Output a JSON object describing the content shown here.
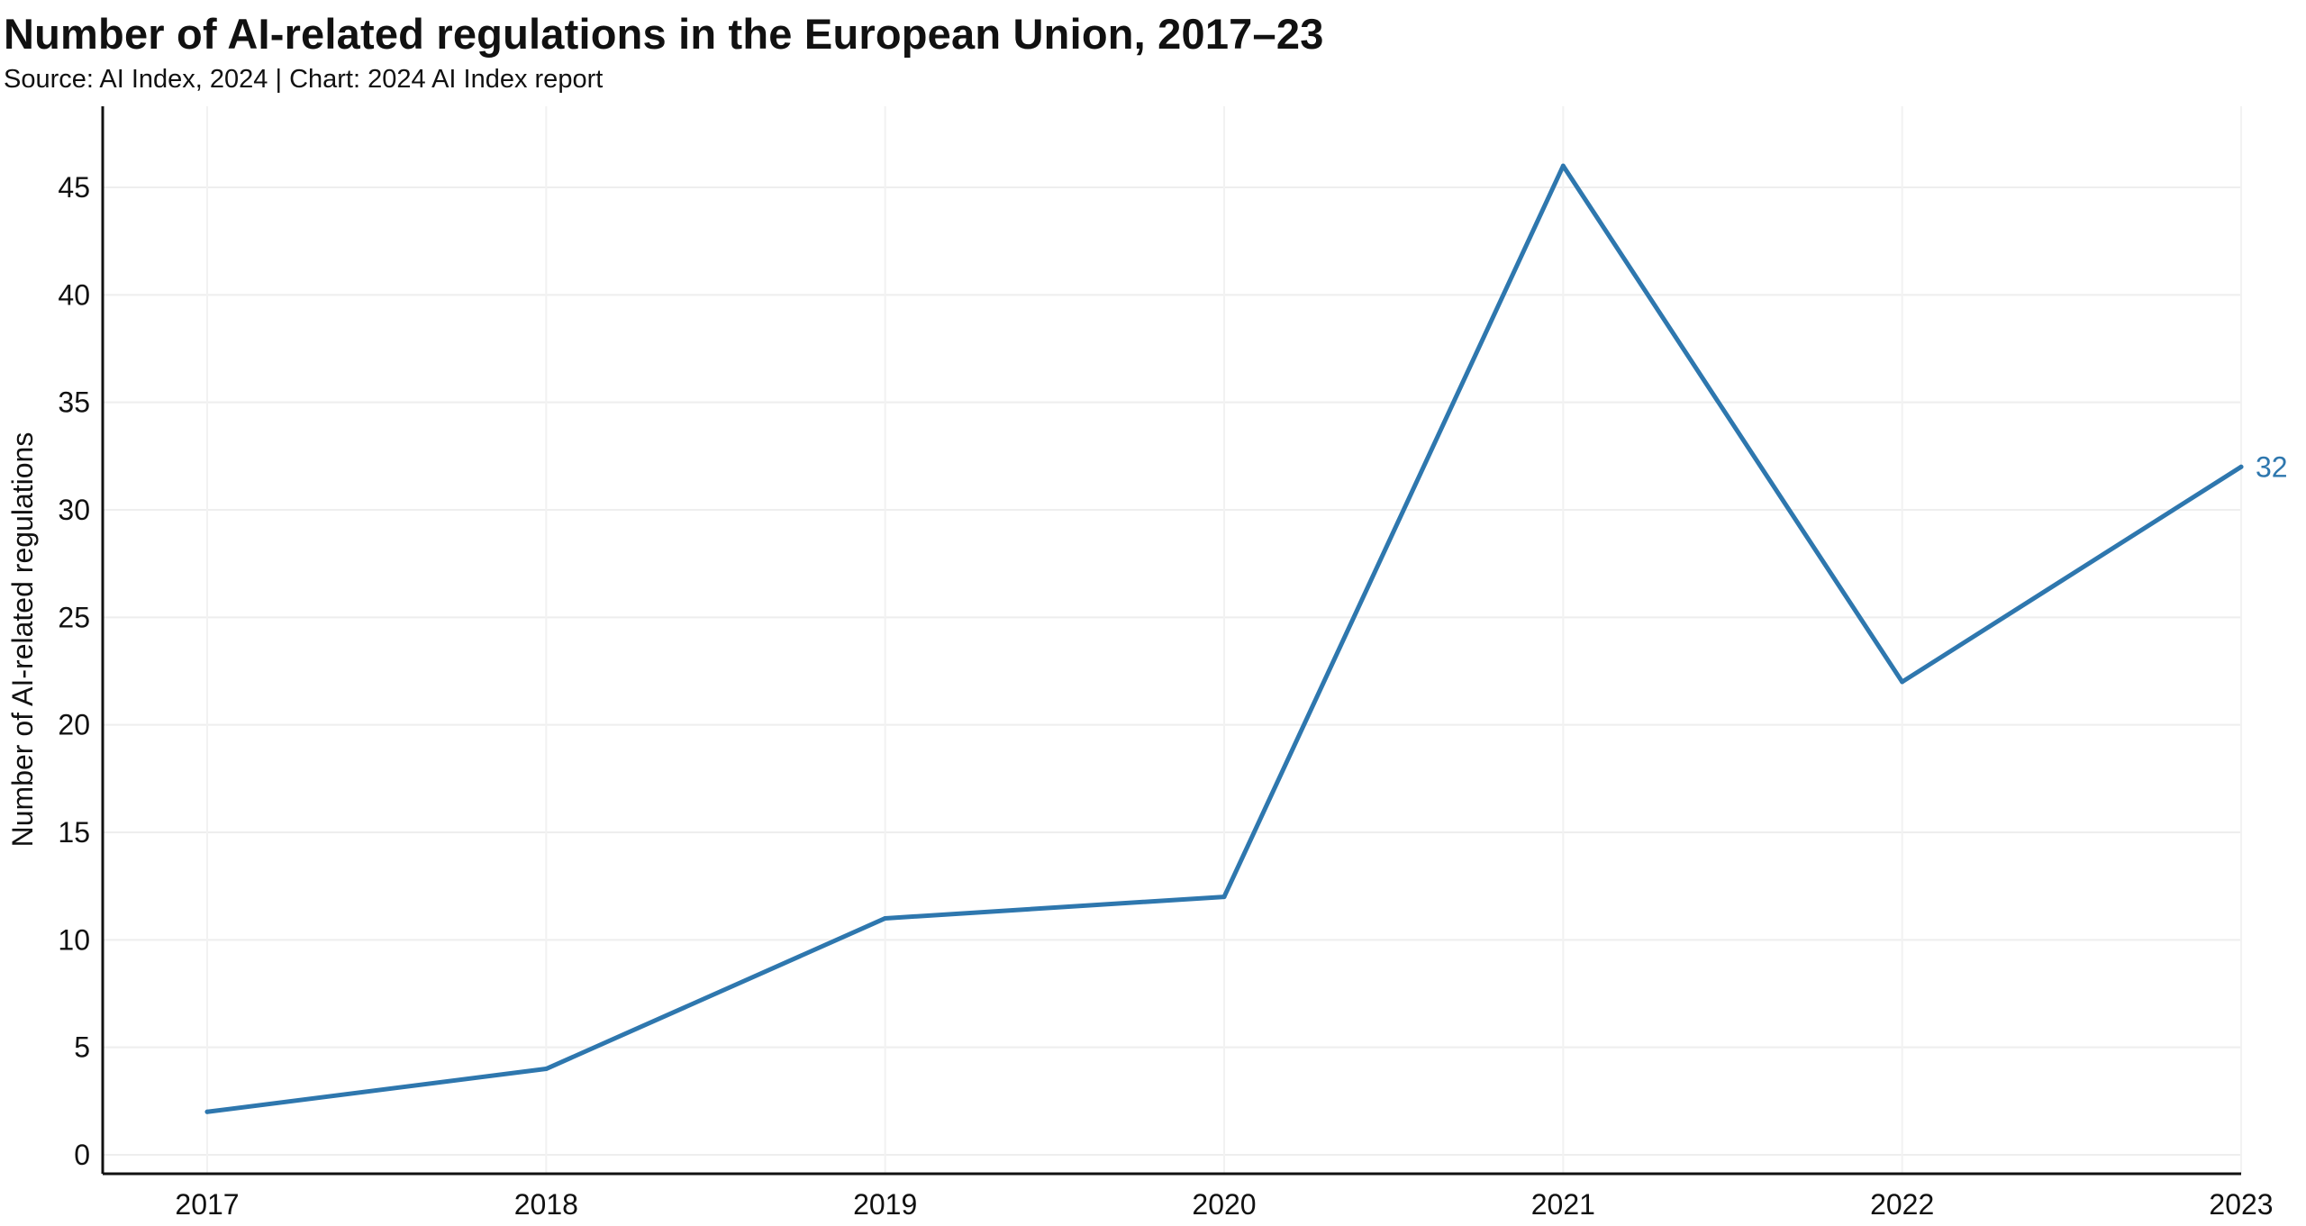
{
  "header": {
    "title": "Number of AI-related regulations in the European Union, 2017–23",
    "subtitle": "Source: AI Index, 2024 | Chart: 2024 AI Index report"
  },
  "chart_data": {
    "type": "line",
    "title": "Number of AI-related regulations in the European Union, 2017–23",
    "subtitle": "Source: AI Index, 2024 | Chart: 2024 AI Index report",
    "xlabel": "",
    "ylabel": "Number of AI-related regulations",
    "x": [
      "2017",
      "2018",
      "2019",
      "2020",
      "2021",
      "2022",
      "2023"
    ],
    "series": [
      {
        "values": [
          2,
          4,
          11,
          12,
          46,
          22,
          32
        ],
        "color": "#2e77ae"
      }
    ],
    "end_label": "32",
    "ylim": [
      0,
      48
    ],
    "yticks": [
      0,
      5,
      10,
      15,
      20,
      25,
      30,
      35,
      40,
      45
    ],
    "grid": true,
    "legend": "none"
  }
}
